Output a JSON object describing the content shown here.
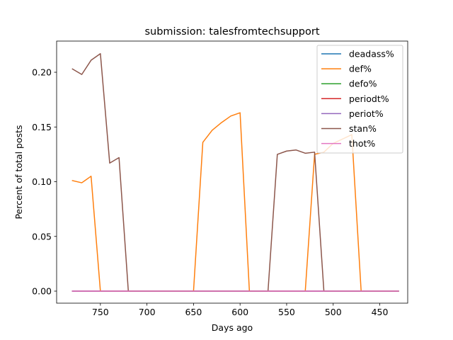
{
  "chart_data": {
    "type": "line",
    "title": "submission: talesfromtechsupport",
    "xlabel": "Days ago",
    "ylabel": "Percent of total posts",
    "xlim": [
      797,
      420
    ],
    "ylim": [
      -0.011,
      0.2285
    ],
    "x_inverted": true,
    "grid": false,
    "legend_position": "upper right",
    "x_ticks": [
      750,
      700,
      650,
      600,
      550,
      500,
      450
    ],
    "x_tick_labels": [
      "750",
      "700",
      "650",
      "600",
      "550",
      "500",
      "450"
    ],
    "y_ticks": [
      0.0,
      0.05,
      0.1,
      0.15,
      0.2
    ],
    "y_tick_labels": [
      "0.00",
      "0.05",
      "0.10",
      "0.15",
      "0.20"
    ],
    "x": [
      780,
      770,
      760,
      750,
      740,
      730,
      720,
      710,
      700,
      690,
      680,
      670,
      660,
      650,
      640,
      630,
      620,
      610,
      600,
      590,
      580,
      570,
      560,
      550,
      540,
      530,
      520,
      510,
      500,
      490,
      480,
      470,
      460,
      450,
      440,
      430
    ],
    "series": [
      {
        "name": "deadass%",
        "color": "#1f77b4",
        "values": [
          0,
          0,
          0,
          0,
          0,
          0,
          0,
          0,
          0,
          0,
          0,
          0,
          0,
          0,
          0,
          0,
          0,
          0,
          0,
          0,
          0,
          0,
          0,
          0,
          0,
          0,
          0,
          0,
          0,
          0,
          0,
          0,
          0,
          0,
          0,
          0
        ]
      },
      {
        "name": "def%",
        "color": "#ff7f0e",
        "values": [
          0.101,
          0.099,
          0.105,
          0,
          0,
          0,
          0,
          0,
          0,
          0,
          0,
          0,
          0,
          0,
          0.136,
          0.147,
          0.154,
          0.16,
          0.163,
          0,
          0,
          0,
          0,
          0,
          0,
          0,
          0.125,
          0.127,
          0.135,
          0.139,
          0.143,
          0,
          0,
          0,
          0,
          0
        ]
      },
      {
        "name": "defo%",
        "color": "#2ca02c",
        "values": [
          0,
          0,
          0,
          0,
          0,
          0,
          0,
          0,
          0,
          0,
          0,
          0,
          0,
          0,
          0,
          0,
          0,
          0,
          0,
          0,
          0,
          0,
          0,
          0,
          0,
          0,
          0,
          0,
          0,
          0,
          0,
          0,
          0,
          0,
          0,
          0
        ]
      },
      {
        "name": "periodt%",
        "color": "#d62728",
        "values": [
          0,
          0,
          0,
          0,
          0,
          0,
          0,
          0,
          0,
          0,
          0,
          0,
          0,
          0,
          0,
          0,
          0,
          0,
          0,
          0,
          0,
          0,
          0,
          0,
          0,
          0,
          0,
          0,
          0,
          0,
          0,
          0,
          0,
          0,
          0,
          0
        ]
      },
      {
        "name": "periot%",
        "color": "#9467bd",
        "values": [
          0,
          0,
          0,
          0,
          0,
          0,
          0,
          0,
          0,
          0,
          0,
          0,
          0,
          0,
          0,
          0,
          0,
          0,
          0,
          0,
          0,
          0,
          0,
          0,
          0,
          0,
          0,
          0,
          0,
          0,
          0,
          0,
          0,
          0,
          0,
          0
        ]
      },
      {
        "name": "stan%",
        "color": "#8c564b",
        "values": [
          0.203,
          0.198,
          0.211,
          0.217,
          0.117,
          0.122,
          0,
          0,
          0,
          0,
          0,
          0,
          0,
          0,
          0,
          0,
          0,
          0,
          0,
          0,
          0,
          0,
          0.125,
          0.128,
          0.129,
          0.126,
          0.127,
          0,
          0,
          0,
          0,
          0,
          0,
          0,
          0,
          0
        ]
      },
      {
        "name": "thot%",
        "color": "#e377c2",
        "values": [
          0,
          0,
          0,
          0,
          0,
          0,
          0,
          0,
          0,
          0,
          0,
          0,
          0,
          0,
          0,
          0,
          0,
          0,
          0,
          0,
          0,
          0,
          0,
          0,
          0,
          0,
          0,
          0,
          0,
          0,
          0,
          0,
          0,
          0,
          0,
          0
        ]
      }
    ]
  }
}
